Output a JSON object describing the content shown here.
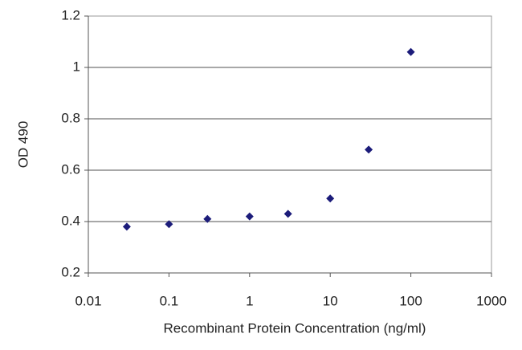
{
  "chart_data": {
    "type": "line",
    "x": [
      0.03,
      0.1,
      0.3,
      1,
      3,
      10,
      30,
      100
    ],
    "values": [
      0.38,
      0.39,
      0.41,
      0.42,
      0.43,
      0.49,
      0.68,
      1.06
    ],
    "color": "#3c3ca8",
    "marker_color": "#1c1c7a",
    "xlabel": "Recombinant Protein Concentration (ng/ml)",
    "ylabel": "OD 490",
    "xscale": "log",
    "xlim": [
      0.01,
      1000
    ],
    "xticks": [
      0.01,
      0.1,
      1,
      10,
      100,
      1000
    ],
    "ylim": [
      0.2,
      1.2
    ],
    "yticks": [
      0.2,
      0.4,
      0.6,
      0.8,
      1,
      1.2
    ],
    "grid": true
  }
}
